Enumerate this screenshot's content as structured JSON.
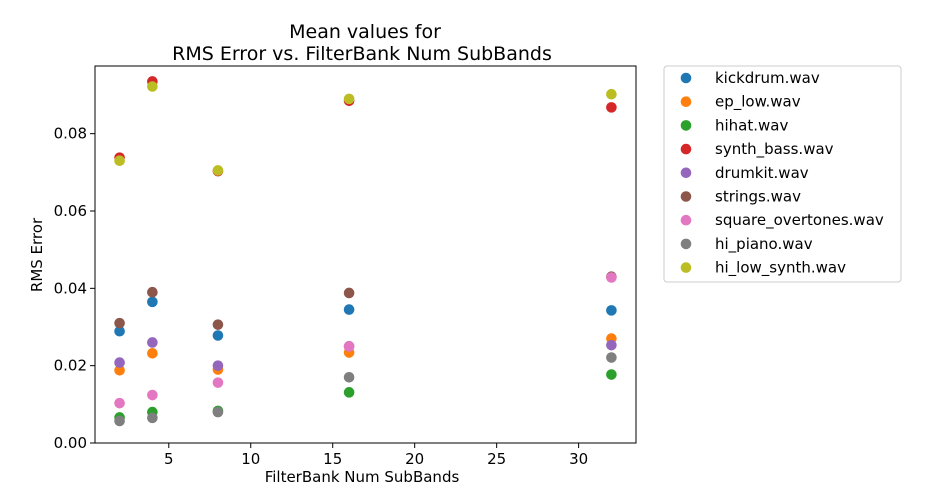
{
  "chart_data": {
    "type": "scatter",
    "title_line1": "Mean values for",
    "title_line2": "RMS Error vs. FilterBank Num SubBands",
    "xlabel": "FilterBank Num SubBands",
    "ylabel": "RMS Error",
    "xlim": [
      0.5,
      33.5
    ],
    "ylim": [
      0,
      0.0975
    ],
    "xticks": [
      5,
      10,
      15,
      20,
      25,
      30
    ],
    "xtick_labels": [
      "5",
      "10",
      "15",
      "20",
      "25",
      "30"
    ],
    "yticks": [
      0,
      0.02,
      0.04,
      0.06,
      0.08
    ],
    "ytick_labels": [
      "0.00",
      "0.02",
      "0.04",
      "0.06",
      "0.08"
    ],
    "legend_position": "outside-right",
    "x": [
      2,
      4,
      8,
      16,
      32
    ],
    "series": [
      {
        "name": "kickdrum.wav",
        "color": "#1f77b4",
        "values": [
          0.0289,
          0.0365,
          0.0278,
          0.0345,
          0.0343
        ]
      },
      {
        "name": "ep_low.wav",
        "color": "#ff7f0e",
        "values": [
          0.0188,
          0.0232,
          0.019,
          0.0234,
          0.027
        ]
      },
      {
        "name": "hihat.wav",
        "color": "#2ca02c",
        "values": [
          0.0066,
          0.008,
          0.0083,
          0.0131,
          0.0177
        ]
      },
      {
        "name": "synth_bass.wav",
        "color": "#d62728",
        "values": [
          0.0738,
          0.0935,
          0.0703,
          0.0885,
          0.0868
        ]
      },
      {
        "name": "drumkit.wav",
        "color": "#9467bd",
        "values": [
          0.0208,
          0.026,
          0.02,
          0.025,
          0.0253
        ]
      },
      {
        "name": "strings.wav",
        "color": "#8c564b",
        "values": [
          0.031,
          0.039,
          0.0306,
          0.0388,
          0.043
        ]
      },
      {
        "name": "square_overtones.wav",
        "color": "#e377c2",
        "values": [
          0.0103,
          0.0124,
          0.0156,
          0.025,
          0.0428
        ]
      },
      {
        "name": "hi_piano.wav",
        "color": "#7f7f7f",
        "values": [
          0.0057,
          0.0065,
          0.008,
          0.017,
          0.0221
        ]
      },
      {
        "name": "hi_low_synth.wav",
        "color": "#bcbd22",
        "values": [
          0.073,
          0.0922,
          0.0705,
          0.089,
          0.0902
        ]
      }
    ]
  }
}
